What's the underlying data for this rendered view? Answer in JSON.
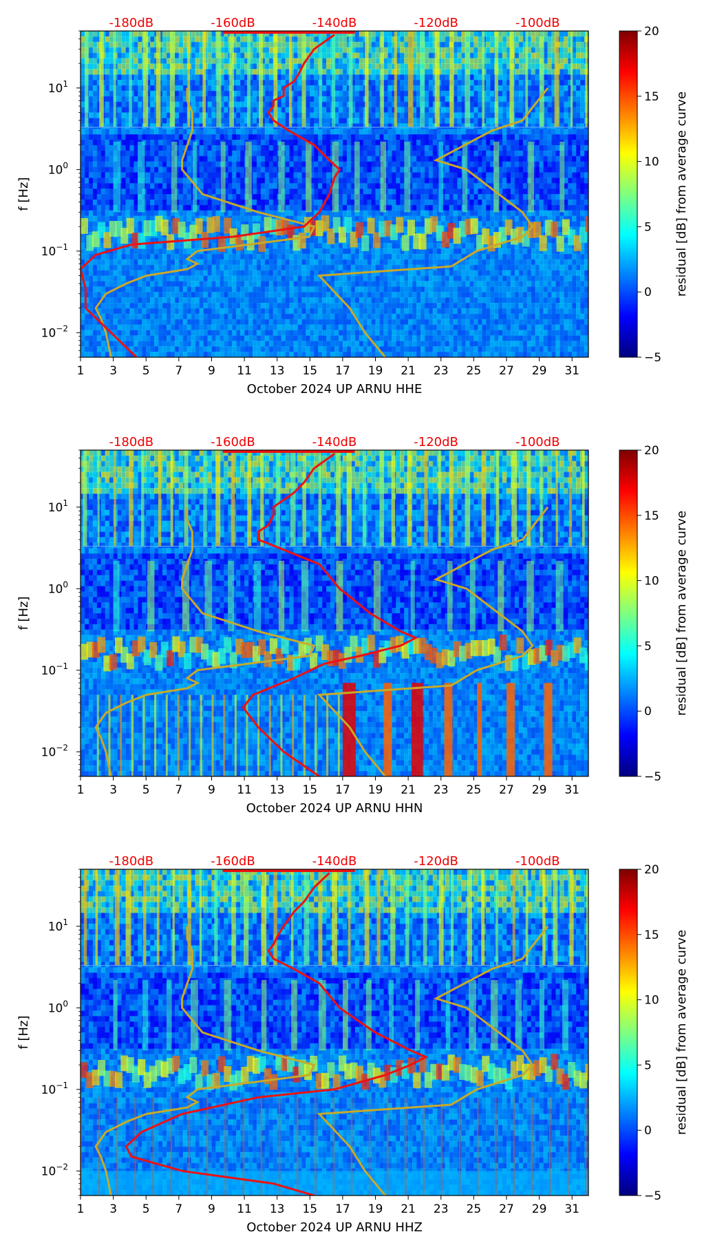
{
  "colors": {
    "noise_curve": "#ee1111",
    "model_curve": "#c8aa2a",
    "db_label": "#ee0000",
    "cmap": [
      "#00007f",
      "#0000ff",
      "#007fff",
      "#00ffff",
      "#7fff7f",
      "#ffff00",
      "#ff7f00",
      "#ff0000",
      "#7f0000"
    ]
  },
  "chart_data": [
    {
      "type": "heatmap",
      "title": "",
      "xlabel": "October 2024 UP ARNU  HHE",
      "ylabel": "f [Hz]",
      "x_ticks": [
        1,
        3,
        5,
        7,
        9,
        11,
        13,
        15,
        17,
        19,
        21,
        23,
        25,
        27,
        29,
        31
      ],
      "xlim": [
        1,
        32
      ],
      "y_scale": "log",
      "ylim": [
        0.005,
        50
      ],
      "y_ticks": [
        {
          "value": 10,
          "label": "10",
          "exp": "1"
        },
        {
          "value": 1,
          "label": "10",
          "exp": "0"
        },
        {
          "value": 0.1,
          "label": "10",
          "exp": "−1"
        },
        {
          "value": 0.01,
          "label": "10",
          "exp": "−2"
        }
      ],
      "db_axis": {
        "labels": [
          "-180dB",
          "-160dB",
          "-140dB",
          "-120dB",
          "-100dB"
        ],
        "values": [
          -180,
          -160,
          -140,
          -120,
          -100
        ],
        "range": [
          -190,
          -90
        ]
      },
      "colorbar": {
        "label": "residual [dB] from average curve",
        "ticks": [
          "20",
          "15",
          "10",
          "5",
          "0",
          "−5"
        ],
        "values": [
          20,
          15,
          10,
          5,
          0,
          -5
        ],
        "range": [
          -5,
          20
        ]
      },
      "noise_curve": [
        [
          0.005,
          -179
        ],
        [
          0.01,
          -184
        ],
        [
          0.02,
          -189
        ],
        [
          0.035,
          -189
        ],
        [
          0.06,
          -190
        ],
        [
          0.09,
          -187
        ],
        [
          0.12,
          -180
        ],
        [
          0.15,
          -160
        ],
        [
          0.2,
          -146
        ],
        [
          0.3,
          -143
        ],
        [
          0.5,
          -141
        ],
        [
          0.8,
          -140
        ],
        [
          1.0,
          -139
        ],
        [
          1.3,
          -141
        ],
        [
          2.0,
          -144
        ],
        [
          3.0,
          -149
        ],
        [
          4.0,
          -152
        ],
        [
          5.0,
          -153
        ],
        [
          6.0,
          -152
        ],
        [
          7.0,
          -152
        ],
        [
          8.0,
          -150
        ],
        [
          10.0,
          -150
        ],
        [
          12.0,
          -148
        ],
        [
          15.0,
          -147
        ],
        [
          20.0,
          -146
        ],
        [
          30.0,
          -144
        ],
        [
          45.0,
          -140
        ]
      ],
      "model_curves": [
        [
          [
            0.005,
            -184
          ],
          [
            0.01,
            -185
          ],
          [
            0.015,
            -186
          ],
          [
            0.02,
            -187
          ],
          [
            0.03,
            -185
          ],
          [
            0.04,
            -181
          ],
          [
            0.05,
            -177
          ],
          [
            0.06,
            -169
          ],
          [
            0.07,
            -167
          ],
          [
            0.08,
            -169
          ],
          [
            0.1,
            -167
          ],
          [
            0.15,
            -145
          ],
          [
            0.2,
            -144
          ],
          [
            0.3,
            -155
          ],
          [
            0.5,
            -166
          ],
          [
            1.0,
            -170
          ],
          [
            1.3,
            -170
          ],
          [
            3.0,
            -168
          ],
          [
            5.0,
            -168
          ],
          [
            7.0,
            -169
          ],
          [
            10.0,
            -169
          ]
        ],
        [
          [
            0.005,
            -130
          ],
          [
            0.01,
            -134
          ],
          [
            0.02,
            -137
          ],
          [
            0.05,
            -143
          ],
          [
            0.065,
            -117
          ],
          [
            0.1,
            -112
          ],
          [
            0.15,
            -103
          ],
          [
            0.2,
            -101
          ],
          [
            0.3,
            -103
          ],
          [
            1.0,
            -114
          ],
          [
            1.3,
            -120
          ],
          [
            3.0,
            -109
          ],
          [
            4.0,
            -103
          ],
          [
            10.0,
            -98
          ]
        ]
      ]
    },
    {
      "type": "heatmap",
      "title": "",
      "xlabel": "October 2024 UP ARNU  HHN",
      "ylabel": "f [Hz]",
      "x_ticks": [
        1,
        3,
        5,
        7,
        9,
        11,
        13,
        15,
        17,
        19,
        21,
        23,
        25,
        27,
        29,
        31
      ],
      "xlim": [
        1,
        32
      ],
      "y_scale": "log",
      "ylim": [
        0.005,
        50
      ],
      "y_ticks": [
        {
          "value": 10,
          "label": "10",
          "exp": "1"
        },
        {
          "value": 1,
          "label": "10",
          "exp": "0"
        },
        {
          "value": 0.1,
          "label": "10",
          "exp": "−1"
        },
        {
          "value": 0.01,
          "label": "10",
          "exp": "−2"
        }
      ],
      "db_axis": {
        "labels": [
          "-180dB",
          "-160dB",
          "-140dB",
          "-120dB",
          "-100dB"
        ],
        "values": [
          -180,
          -160,
          -140,
          -120,
          -100
        ],
        "range": [
          -190,
          -90
        ]
      },
      "colorbar": {
        "label": "residual [dB] from average curve",
        "ticks": [
          "20",
          "15",
          "10",
          "5",
          "0",
          "−5"
        ],
        "values": [
          20,
          15,
          10,
          5,
          0,
          -5
        ],
        "range": [
          -5,
          20
        ]
      },
      "noise_curve": [
        [
          0.005,
          -143
        ],
        [
          0.01,
          -150
        ],
        [
          0.02,
          -155
        ],
        [
          0.035,
          -158
        ],
        [
          0.05,
          -156
        ],
        [
          0.08,
          -148
        ],
        [
          0.12,
          -142
        ],
        [
          0.15,
          -135
        ],
        [
          0.2,
          -127
        ],
        [
          0.25,
          -124
        ],
        [
          0.3,
          -127
        ],
        [
          0.5,
          -133
        ],
        [
          0.8,
          -137
        ],
        [
          1.0,
          -139
        ],
        [
          2.0,
          -143
        ],
        [
          3.0,
          -150
        ],
        [
          4.0,
          -155
        ],
        [
          5.0,
          -155
        ],
        [
          6.0,
          -153
        ],
        [
          8.0,
          -152
        ],
        [
          10.0,
          -152
        ],
        [
          15.0,
          -148
        ],
        [
          20.0,
          -146
        ],
        [
          30.0,
          -144
        ],
        [
          45.0,
          -140
        ]
      ],
      "model_curves": [
        [
          [
            0.005,
            -184
          ],
          [
            0.01,
            -185
          ],
          [
            0.015,
            -186
          ],
          [
            0.02,
            -187
          ],
          [
            0.03,
            -185
          ],
          [
            0.04,
            -181
          ],
          [
            0.05,
            -177
          ],
          [
            0.06,
            -169
          ],
          [
            0.07,
            -167
          ],
          [
            0.08,
            -169
          ],
          [
            0.1,
            -167
          ],
          [
            0.15,
            -145
          ],
          [
            0.2,
            -144
          ],
          [
            0.3,
            -155
          ],
          [
            0.5,
            -166
          ],
          [
            1.0,
            -170
          ],
          [
            1.3,
            -170
          ],
          [
            3.0,
            -168
          ],
          [
            5.0,
            -168
          ],
          [
            7.0,
            -169
          ],
          [
            10.0,
            -169
          ]
        ],
        [
          [
            0.005,
            -130
          ],
          [
            0.01,
            -134
          ],
          [
            0.02,
            -137
          ],
          [
            0.05,
            -143
          ],
          [
            0.065,
            -117
          ],
          [
            0.1,
            -112
          ],
          [
            0.15,
            -103
          ],
          [
            0.2,
            -101
          ],
          [
            0.3,
            -103
          ],
          [
            1.0,
            -114
          ],
          [
            1.3,
            -120
          ],
          [
            3.0,
            -109
          ],
          [
            4.0,
            -103
          ],
          [
            10.0,
            -98
          ]
        ]
      ]
    },
    {
      "type": "heatmap",
      "title": "",
      "xlabel": "October 2024 UP ARNU  HHZ",
      "ylabel": "f [Hz]",
      "x_ticks": [
        1,
        3,
        5,
        7,
        9,
        11,
        13,
        15,
        17,
        19,
        21,
        23,
        25,
        27,
        29,
        31
      ],
      "xlim": [
        1,
        32
      ],
      "y_scale": "log",
      "ylim": [
        0.005,
        50
      ],
      "y_ticks": [
        {
          "value": 10,
          "label": "10",
          "exp": "1"
        },
        {
          "value": 1,
          "label": "10",
          "exp": "0"
        },
        {
          "value": 0.1,
          "label": "10",
          "exp": "−1"
        },
        {
          "value": 0.01,
          "label": "10",
          "exp": "−2"
        }
      ],
      "db_axis": {
        "labels": [
          "-180dB",
          "-160dB",
          "-140dB",
          "-120dB",
          "-100dB"
        ],
        "values": [
          -180,
          -160,
          -140,
          -120,
          -100
        ],
        "range": [
          -190,
          -90
        ]
      },
      "colorbar": {
        "label": "residual [dB] from average curve",
        "ticks": [
          "20",
          "15",
          "10",
          "5",
          "0",
          "−5"
        ],
        "values": [
          20,
          15,
          10,
          5,
          0,
          -5
        ],
        "range": [
          -5,
          20
        ]
      },
      "noise_curve": [
        [
          0.005,
          -144
        ],
        [
          0.007,
          -152
        ],
        [
          0.01,
          -170
        ],
        [
          0.015,
          -180
        ],
        [
          0.02,
          -181
        ],
        [
          0.03,
          -178
        ],
        [
          0.05,
          -170
        ],
        [
          0.08,
          -155
        ],
        [
          0.1,
          -140
        ],
        [
          0.15,
          -130
        ],
        [
          0.2,
          -125
        ],
        [
          0.25,
          -122
        ],
        [
          0.3,
          -125
        ],
        [
          0.5,
          -132
        ],
        [
          1.0,
          -139
        ],
        [
          2.0,
          -143
        ],
        [
          3.0,
          -148
        ],
        [
          4.0,
          -152
        ],
        [
          5.0,
          -153
        ],
        [
          6.0,
          -152
        ],
        [
          8.0,
          -151
        ],
        [
          10.0,
          -150
        ],
        [
          15.0,
          -148
        ],
        [
          20.0,
          -146
        ],
        [
          30.0,
          -144
        ],
        [
          45.0,
          -141
        ]
      ],
      "model_curves": [
        [
          [
            0.005,
            -184
          ],
          [
            0.01,
            -185
          ],
          [
            0.015,
            -186
          ],
          [
            0.02,
            -187
          ],
          [
            0.03,
            -185
          ],
          [
            0.04,
            -181
          ],
          [
            0.05,
            -177
          ],
          [
            0.06,
            -169
          ],
          [
            0.07,
            -167
          ],
          [
            0.08,
            -169
          ],
          [
            0.1,
            -167
          ],
          [
            0.15,
            -145
          ],
          [
            0.2,
            -144
          ],
          [
            0.3,
            -155
          ],
          [
            0.5,
            -166
          ],
          [
            1.0,
            -170
          ],
          [
            1.3,
            -170
          ],
          [
            3.0,
            -168
          ],
          [
            5.0,
            -168
          ],
          [
            7.0,
            -169
          ],
          [
            10.0,
            -169
          ]
        ],
        [
          [
            0.005,
            -130
          ],
          [
            0.01,
            -134
          ],
          [
            0.02,
            -137
          ],
          [
            0.05,
            -143
          ],
          [
            0.065,
            -117
          ],
          [
            0.1,
            -112
          ],
          [
            0.15,
            -103
          ],
          [
            0.2,
            -101
          ],
          [
            0.3,
            -103
          ],
          [
            1.0,
            -114
          ],
          [
            1.3,
            -120
          ],
          [
            3.0,
            -109
          ],
          [
            4.0,
            -103
          ],
          [
            10.0,
            -98
          ]
        ]
      ]
    }
  ]
}
